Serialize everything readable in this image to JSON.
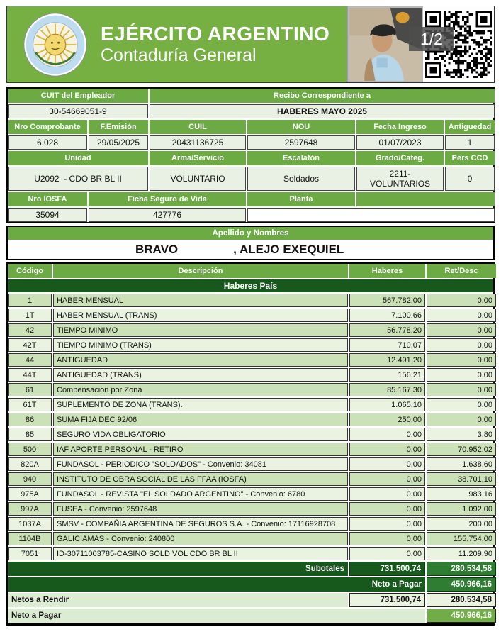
{
  "header": {
    "title": "EJÉRCITO ARGENTINO",
    "subtitle": "Contaduría General",
    "page_indicator": "1/2"
  },
  "colors": {
    "banner_green": "#76b043",
    "label_green": "#6cab44",
    "dark_green": "#17591c",
    "medium_green": "#2e7d32",
    "bright_green": "#71ad47",
    "stripe_dark": "#cbe1b7",
    "stripe_light": "#e9f3e0"
  },
  "info": {
    "cuit_label": "CUIT del Empleador",
    "cuit_value": "30-54669051-9",
    "recibo_label": "Recibo Correspondiente a",
    "recibo_value": "HABERES MAYO 2025",
    "comprobante_label": "Nro Comprobante",
    "comprobante": "6.028",
    "femision_label": "F.Emisión",
    "femision": "29/05/2025",
    "cuil_label": "CUIL",
    "cuil": "20431136725",
    "nou_label": "NOU",
    "nou": "2597648",
    "ingreso_label": "Fecha Ingreso",
    "ingreso": "01/07/2023",
    "antiguedad_label": "Antiguedad",
    "antiguedad": "1",
    "unidad_label": "Unidad",
    "unidad": "U2092  - CDO BR BL II",
    "arma_label": "Arma/Servicio",
    "arma": "VOLUNTARIO",
    "escalafon_label": "Escalafón",
    "escalafon": "Soldados",
    "grado_label": "Grado/Categ.",
    "grado": "2211-VOLUNTARIOS",
    "persccd_label": "Pers CCD",
    "persccd": "0",
    "iosfa_label": "Nro IOSFA",
    "iosfa": "35094",
    "ficha_label": "Ficha Seguro de Vida",
    "ficha": "427776",
    "planta_label": "Planta",
    "planta": ""
  },
  "name": {
    "label": "Apellido y Nombres",
    "surname": "BRAVO",
    "given": ", ALEJO EXEQUIEL"
  },
  "table": {
    "headers": {
      "code": "Código",
      "desc": "Descripción",
      "haberes": "Haberes",
      "ret": "Ret/Desc"
    },
    "section": "Haberes País",
    "rows": [
      {
        "code": "1",
        "desc": "HABER MENSUAL",
        "haberes": "567.782,00",
        "ret": "0,00"
      },
      {
        "code": "1T",
        "desc": "HABER MENSUAL (TRANS)",
        "haberes": "7.100,66",
        "ret": "0,00"
      },
      {
        "code": "42",
        "desc": "TIEMPO MINIMO",
        "haberes": "56.778,20",
        "ret": "0,00"
      },
      {
        "code": "42T",
        "desc": "TIEMPO MINIMO (TRANS)",
        "haberes": "710,07",
        "ret": "0,00"
      },
      {
        "code": "44",
        "desc": "ANTIGUEDAD",
        "haberes": "12.491,20",
        "ret": "0,00"
      },
      {
        "code": "44T",
        "desc": "ANTIGUEDAD (TRANS)",
        "haberes": "156,21",
        "ret": "0,00"
      },
      {
        "code": "61",
        "desc": "Compensacion por Zona",
        "haberes": "85.167,30",
        "ret": "0,00"
      },
      {
        "code": "61T",
        "desc": "SUPLEMENTO DE ZONA (TRANS).",
        "haberes": "1.065,10",
        "ret": "0,00"
      },
      {
        "code": "86",
        "desc": "SUMA FIJA DEC 92/06",
        "haberes": "250,00",
        "ret": "0,00"
      },
      {
        "code": "85",
        "desc": "SEGURO VIDA OBLIGATORIO",
        "haberes": "0,00",
        "ret": "3,80"
      },
      {
        "code": "500",
        "desc": "IAF APORTE PERSONAL - RETIRO",
        "haberes": "0,00",
        "ret": "70.952,02"
      },
      {
        "code": "820A",
        "desc": "FUNDASOL - PERIODICO \"SOLDADOS\" - Convenio: 34081",
        "haberes": "0,00",
        "ret": "1.638,60"
      },
      {
        "code": "940",
        "desc": "INSTITUTO DE OBRA SOCIAL DE LAS FFAA (IOSFA)",
        "haberes": "0,00",
        "ret": "38.701,10"
      },
      {
        "code": "975A",
        "desc": "FUNDASOL - REVISTA \"EL SOLDADO ARGENTINO\" - Convenio: 6780",
        "haberes": "0,00",
        "ret": "983,16"
      },
      {
        "code": "997A",
        "desc": "FUSEA - Convenio: 2597648",
        "haberes": "0,00",
        "ret": "1.092,00"
      },
      {
        "code": "1037A",
        "desc": "SMSV - COMPAÑIA ARGENTINA DE SEGUROS S.A. - Convenio: 17116928708",
        "haberes": "0,00",
        "ret": "200,00"
      },
      {
        "code": "1104B",
        "desc": "GALICIAMAS - Convenio: 240800",
        "haberes": "0,00",
        "ret": "155.754,00"
      },
      {
        "code": "7051",
        "desc": "ID-30711003785-CASINO SOLD VOL CDO BR BL II",
        "haberes": "0,00",
        "ret": "11.209,90"
      }
    ],
    "subtotals": {
      "label": "Subotales",
      "haberes": "731.500,74",
      "ret": "280.534,58"
    },
    "neto_pagar_dark": {
      "label": "Neto a Pagar",
      "value": "450.966,16"
    },
    "netos_rendir": {
      "label": "Netos a Rendir",
      "haberes": "731.500,74",
      "ret": "280.534,58"
    },
    "neto_pagar_light": {
      "label": "Neto a Pagar",
      "value": "450.966,16"
    }
  }
}
